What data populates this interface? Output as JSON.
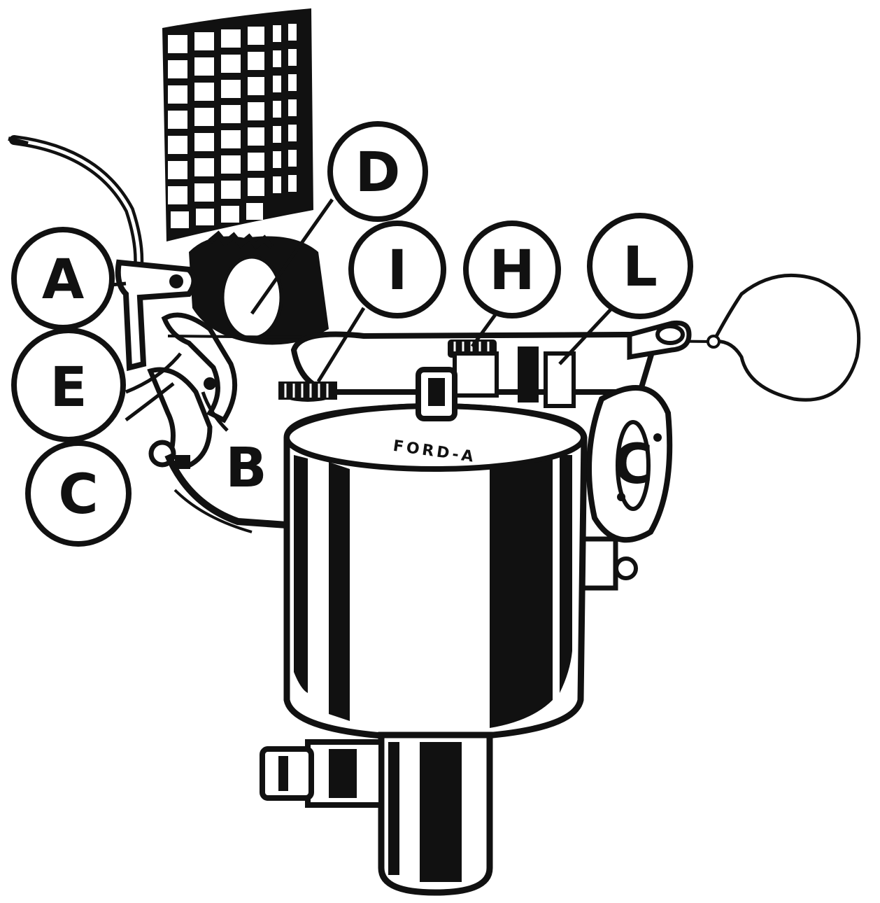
{
  "diagram": {
    "ink_color": "#111111",
    "paper_color": "#ffffff",
    "callouts": {
      "a": "A",
      "b": "B",
      "c_left": "C",
      "c_flange": "C",
      "d": "D",
      "e": "E",
      "h": "H",
      "i": "I",
      "l": "L"
    },
    "bowl_stamp": "FORD-A"
  }
}
